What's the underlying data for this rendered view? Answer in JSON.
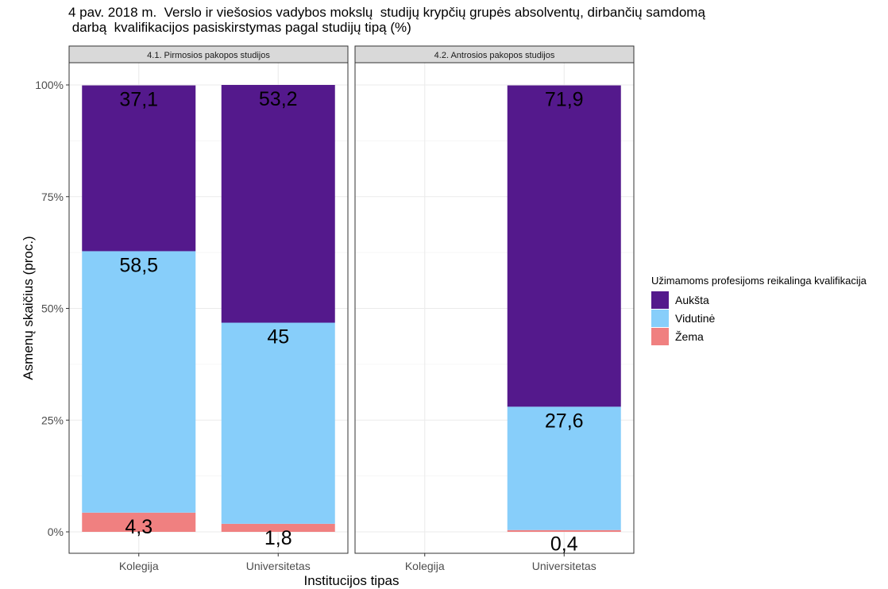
{
  "title_line1": "4 pav. 2018 m.  Verslo ir viešosios vadybos mokslų  studijų krypčių grupės absolventų, dirbančių samdomą",
  "title_line2": " darbą  kvalifikacijos pasiskirstymas pagal studijų tipą (%)",
  "colors": {
    "Aukšta": "#54198c",
    "Vidutinė": "#87cefa",
    "Žema": "#f08080"
  },
  "chart_data": {
    "type": "bar",
    "stacked": true,
    "percent_axis": true,
    "xlabel": "Institucijos tipas",
    "ylabel": "Asmenų skaičius (proc.)",
    "ylim": [
      0,
      100
    ],
    "yticks": [
      "0%",
      "25%",
      "50%",
      "75%",
      "100%"
    ],
    "ytick_values": [
      0,
      25,
      50,
      75,
      100
    ],
    "grid": true,
    "legend_title": "Užimamoms profesijoms reikalinga kvalifikacija",
    "legend_position": "right",
    "legend": [
      "Aukšta",
      "Vidutinė",
      "Žema"
    ],
    "panels": [
      {
        "title": "4.1. Pirmosios pakopos studijos",
        "categories": [
          "Kolegija",
          "Universitetas"
        ],
        "series": [
          {
            "name": "Žema",
            "values": [
              4.3,
              1.8
            ],
            "labels": [
              "4,3",
              "1,8"
            ]
          },
          {
            "name": "Vidutinė",
            "values": [
              58.5,
              45
            ],
            "labels": [
              "58,5",
              "45"
            ]
          },
          {
            "name": "Aukšta",
            "values": [
              37.1,
              53.2
            ],
            "labels": [
              "37,1",
              "53,2"
            ]
          }
        ]
      },
      {
        "title": "4.2. Antrosios pakopos studijos",
        "categories": [
          "Kolegija",
          "Universitetas"
        ],
        "series": [
          {
            "name": "Žema",
            "values": [
              null,
              0.4
            ],
            "labels": [
              "",
              "0,4"
            ]
          },
          {
            "name": "Vidutinė",
            "values": [
              null,
              27.6
            ],
            "labels": [
              "",
              "27,6"
            ]
          },
          {
            "name": "Aukšta",
            "values": [
              null,
              71.9
            ],
            "labels": [
              "",
              "71,9"
            ]
          }
        ]
      }
    ]
  }
}
